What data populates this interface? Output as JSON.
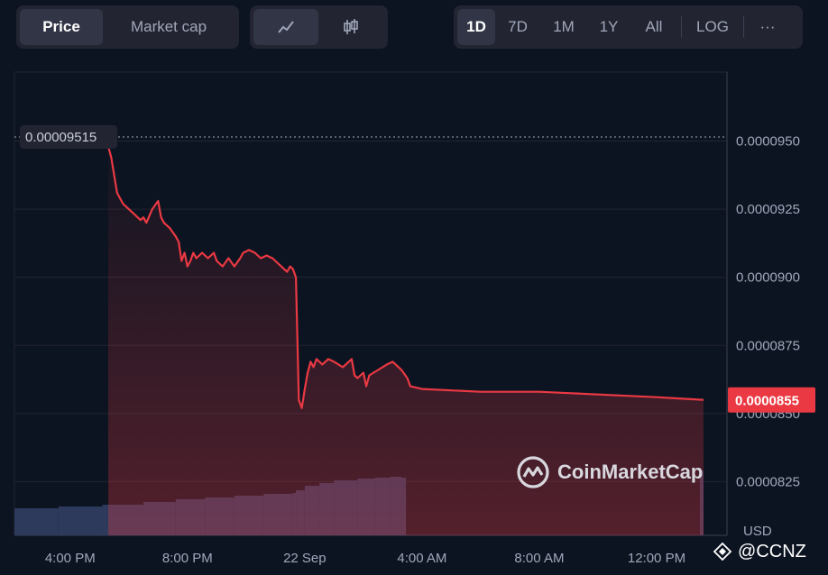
{
  "tabs": {
    "price": "Price",
    "market_cap": "Market cap"
  },
  "chart_type_icons": [
    "line-chart-icon",
    "candlestick-icon"
  ],
  "ranges": [
    "1D",
    "7D",
    "1M",
    "1Y",
    "All"
  ],
  "log_label": "LOG",
  "more_label": "···",
  "watermark": "CoinMarketCap",
  "credit": "@CCNZ",
  "colors": {
    "background": "#0d1421",
    "line": "#ea3943",
    "volume": "#2e3a5c",
    "price_badge": "#ea3943"
  },
  "chart_data": {
    "type": "line",
    "x_tick_labels": [
      "4:00 PM",
      "8:00 PM",
      "22 Sep",
      "4:00 AM",
      "8:00 AM",
      "12:00 PM"
    ],
    "x_tick_hours": [
      16,
      20,
      24,
      28,
      32,
      36
    ],
    "x_range_hours": [
      14.1,
      38.4
    ],
    "ylim": [
      8.053e-05,
      9.753e-05
    ],
    "y_ticks": [
      8.25e-05,
      8.5e-05,
      8.75e-05,
      9e-05,
      9.25e-05,
      9.5e-05
    ],
    "y_tick_labels": [
      "0.0000825",
      "0.0000850",
      "0.0000875",
      "0.0000900",
      "0.0000925",
      "0.0000950"
    ],
    "y_unit": "USD",
    "open_price_label": "0.00009515",
    "open_price": 9.515e-05,
    "current_price_label": "0.0000855",
    "current_price": 8.55e-05,
    "series": [
      {
        "x": [
          17.3,
          17.4,
          17.6,
          17.8,
          18.0,
          18.2,
          18.4,
          18.5,
          18.6,
          18.8,
          19.0,
          19.1,
          19.2,
          19.4,
          19.6,
          19.7,
          19.8,
          19.9,
          20.0,
          20.1,
          20.2,
          20.3,
          20.5,
          20.7,
          20.9,
          21.0,
          21.2,
          21.4,
          21.6,
          21.8,
          21.9,
          22.1,
          22.3,
          22.5,
          22.7,
          22.9,
          23.0,
          23.2,
          23.4,
          23.5,
          23.6,
          23.7,
          23.8,
          23.9,
          24.0,
          24.1,
          24.2,
          24.3,
          24.4,
          24.6,
          24.8,
          25.0,
          25.3,
          25.6,
          25.7,
          25.8,
          26.0,
          26.1,
          26.2,
          26.5,
          26.8,
          27.0,
          27.2,
          27.3,
          27.5,
          27.6,
          28.0,
          30.0,
          32.0,
          34.0,
          36.0,
          37.6
        ],
        "y": [
          9.48e-05,
          9.44e-05,
          9.31e-05,
          9.27e-05,
          9.25e-05,
          9.23e-05,
          9.21e-05,
          9.22e-05,
          9.2e-05,
          9.25e-05,
          9.28e-05,
          9.22e-05,
          9.2e-05,
          9.18e-05,
          9.15e-05,
          9.13e-05,
          9.06e-05,
          9.09e-05,
          9.04e-05,
          9.06e-05,
          9.09e-05,
          9.07e-05,
          9.09e-05,
          9.07e-05,
          9.09e-05,
          9.06e-05,
          9.04e-05,
          9.07e-05,
          9.04e-05,
          9.07e-05,
          9.09e-05,
          9.1e-05,
          9.09e-05,
          9.07e-05,
          9.08e-05,
          9.07e-05,
          9.06e-05,
          9.04e-05,
          9.02e-05,
          9.04e-05,
          9.03e-05,
          9e-05,
          8.55e-05,
          8.52e-05,
          8.59e-05,
          8.65e-05,
          8.69e-05,
          8.67e-05,
          8.7e-05,
          8.68e-05,
          8.7e-05,
          8.69e-05,
          8.67e-05,
          8.7e-05,
          8.64e-05,
          8.63e-05,
          8.65e-05,
          8.6e-05,
          8.64e-05,
          8.66e-05,
          8.68e-05,
          8.69e-05,
          8.67e-05,
          8.66e-05,
          8.63e-05,
          8.6e-05,
          8.59e-05,
          8.58e-05,
          8.58e-05,
          8.57e-05,
          8.56e-05,
          8.55e-05
        ]
      }
    ],
    "volume": {
      "x": [
        14.1,
        15.6,
        17.1,
        18.5,
        19.6,
        20.6,
        21.6,
        22.6,
        23.6,
        23.7,
        24.0,
        24.5,
        25.0,
        25.8,
        26.4,
        26.9,
        27.3
      ],
      "values": [
        0.3,
        0.32,
        0.34,
        0.37,
        0.4,
        0.42,
        0.44,
        0.46,
        0.47,
        0.5,
        0.55,
        0.58,
        0.61,
        0.63,
        0.64,
        0.65,
        0.64
      ]
    }
  }
}
